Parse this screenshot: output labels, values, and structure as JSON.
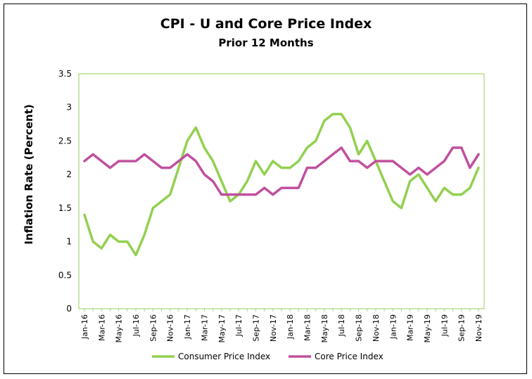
{
  "chart_data": {
    "type": "line",
    "title": "CPI - U and Core Price Index",
    "subtitle": "Prior 12 Months",
    "ylabel": "Inflation Rate (Percent)",
    "xlabel": "",
    "ylim": [
      0,
      3.5
    ],
    "yticks": [
      "0",
      "0.5",
      "1",
      "1.5",
      "2",
      "2.5",
      "3",
      "3.5"
    ],
    "ytick_values": [
      0,
      0.5,
      1,
      1.5,
      2,
      2.5,
      3,
      3.5
    ],
    "grid": false,
    "legend": "bottom",
    "x": [
      "Jan-16",
      "Feb-16",
      "Mar-16",
      "Apr-16",
      "May-16",
      "Jun-16",
      "Jul-16",
      "Aug-16",
      "Sep-16",
      "Oct-16",
      "Nov-16",
      "Dec-16",
      "Jan-17",
      "Feb-17",
      "Mar-17",
      "Apr-17",
      "May-17",
      "Jun-17",
      "Jul-17",
      "Aug-17",
      "Sep-17",
      "Oct-17",
      "Nov-17",
      "Dec-17",
      "Jan-18",
      "Feb-18",
      "Mar-18",
      "Apr-18",
      "May-18",
      "Jun-18",
      "Jul-18",
      "Aug-18",
      "Sep-18",
      "Oct-18",
      "Nov-18",
      "Dec-18",
      "Jan-19",
      "Feb-19",
      "Mar-19",
      "Apr-19",
      "May-19",
      "Jun-19",
      "Jul-19",
      "Aug-19",
      "Sep-19",
      "Oct-19",
      "Nov-19"
    ],
    "xticks_shown": [
      "Jan-16",
      "Mar-16",
      "May-16",
      "Jul-16",
      "Sep-16",
      "Nov-16",
      "Jan-17",
      "Mar-17",
      "May-17",
      "Jul-17",
      "Sep-17",
      "Nov-17",
      "Jan-18",
      "Mar-18",
      "May-18",
      "Jul-18",
      "Sep-18",
      "Nov-18",
      "Jan-19",
      "Mar-19",
      "May-19",
      "Jul-19",
      "Sep-19",
      "Nov-19"
    ],
    "series": [
      {
        "name": "Consumer Price Index",
        "color": "#92d050",
        "values": [
          1.4,
          1.0,
          0.9,
          1.1,
          1.0,
          1.0,
          0.8,
          1.1,
          1.5,
          1.6,
          1.7,
          2.1,
          2.5,
          2.7,
          2.4,
          2.2,
          1.9,
          1.6,
          1.7,
          1.9,
          2.2,
          2.0,
          2.2,
          2.1,
          2.1,
          2.2,
          2.4,
          2.5,
          2.8,
          2.9,
          2.9,
          2.7,
          2.3,
          2.5,
          2.2,
          1.9,
          1.6,
          1.5,
          1.9,
          2.0,
          1.8,
          1.6,
          1.8,
          1.7,
          1.7,
          1.8,
          2.1
        ]
      },
      {
        "name": "Core Price Index",
        "color": "#c0509e",
        "values": [
          2.2,
          2.3,
          2.2,
          2.1,
          2.2,
          2.2,
          2.2,
          2.3,
          2.2,
          2.1,
          2.1,
          2.2,
          2.3,
          2.2,
          2.0,
          1.9,
          1.7,
          1.7,
          1.7,
          1.7,
          1.7,
          1.8,
          1.7,
          1.8,
          1.8,
          1.8,
          2.1,
          2.1,
          2.2,
          2.3,
          2.4,
          2.2,
          2.2,
          2.1,
          2.2,
          2.2,
          2.2,
          2.1,
          2.0,
          2.1,
          2.0,
          2.1,
          2.2,
          2.4,
          2.4,
          2.1,
          2.3
        ]
      }
    ],
    "plot_border_color": "#92d050"
  }
}
